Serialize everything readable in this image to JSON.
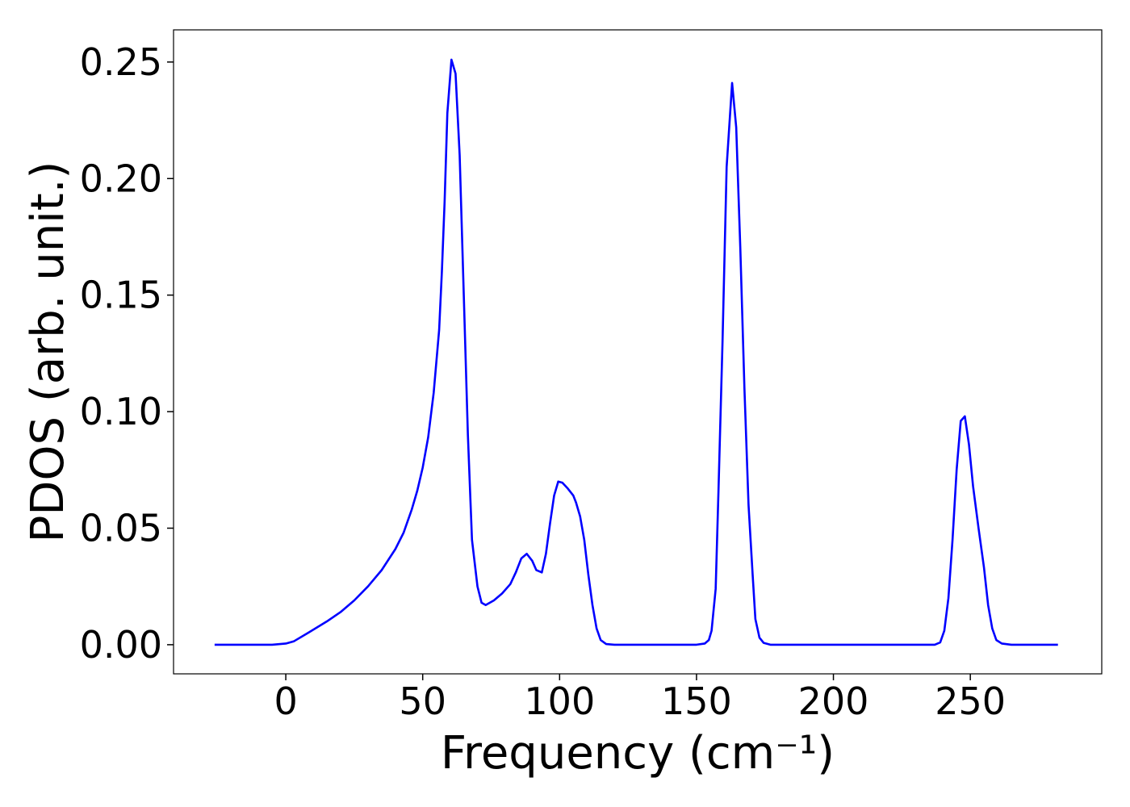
{
  "chart_data": {
    "type": "line",
    "xlabel": "Frequency (cm⁻¹)",
    "ylabel": "PDOS (arb. unit.)",
    "x": [
      -26,
      -5,
      0,
      3,
      8,
      15,
      20,
      25,
      30,
      35,
      40,
      43,
      46,
      48,
      50,
      52,
      54,
      56,
      57,
      58,
      59,
      60.5,
      62,
      63.5,
      65,
      66.5,
      68,
      70,
      71.5,
      73,
      76,
      79,
      82,
      84,
      86,
      88,
      90,
      91.5,
      93.5,
      95,
      96.5,
      98,
      99.5,
      101,
      103,
      105,
      106,
      107.5,
      109,
      110.5,
      112,
      113.5,
      115,
      117,
      120,
      150,
      153,
      154.5,
      155.5,
      157,
      158,
      159.5,
      161,
      163,
      164.5,
      166,
      167.5,
      169,
      170.5,
      171.5,
      173,
      174.5,
      177,
      237,
      239,
      240.5,
      242,
      243.5,
      245,
      246.5,
      248,
      249.5,
      251,
      253,
      255,
      256.5,
      258,
      259.5,
      261.5,
      265,
      282
    ],
    "series": [
      {
        "name": "PDOS",
        "color": "#0000ff",
        "values": [
          0,
          0,
          0.0005,
          0.0015,
          0.005,
          0.01,
          0.014,
          0.019,
          0.025,
          0.032,
          0.041,
          0.048,
          0.058,
          0.066,
          0.076,
          0.089,
          0.108,
          0.135,
          0.16,
          0.19,
          0.228,
          0.251,
          0.245,
          0.21,
          0.15,
          0.09,
          0.045,
          0.025,
          0.018,
          0.017,
          0.019,
          0.022,
          0.026,
          0.031,
          0.037,
          0.039,
          0.036,
          0.032,
          0.031,
          0.039,
          0.052,
          0.064,
          0.07,
          0.0695,
          0.067,
          0.064,
          0.061,
          0.055,
          0.045,
          0.03,
          0.017,
          0.007,
          0.002,
          0.0003,
          0,
          0,
          0.0005,
          0.002,
          0.006,
          0.024,
          0.065,
          0.13,
          0.205,
          0.241,
          0.222,
          0.17,
          0.11,
          0.06,
          0.03,
          0.011,
          0.003,
          0.0008,
          0,
          0,
          0.001,
          0.006,
          0.02,
          0.045,
          0.075,
          0.096,
          0.098,
          0.086,
          0.068,
          0.05,
          0.033,
          0.017,
          0.007,
          0.002,
          0.0005,
          0,
          0
        ]
      }
    ],
    "xlim": [
      -41,
      298
    ],
    "ylim": [
      -0.0125,
      0.2638
    ],
    "xticks": [
      0,
      50,
      100,
      150,
      200,
      250
    ],
    "yticks": [
      {
        "value": 0,
        "label": "0.00"
      },
      0.05,
      {
        "value": 0.1,
        "label": "0.10"
      },
      0.15,
      {
        "value": 0.2,
        "label": "0.20"
      },
      0.25
    ],
    "grid": false
  }
}
